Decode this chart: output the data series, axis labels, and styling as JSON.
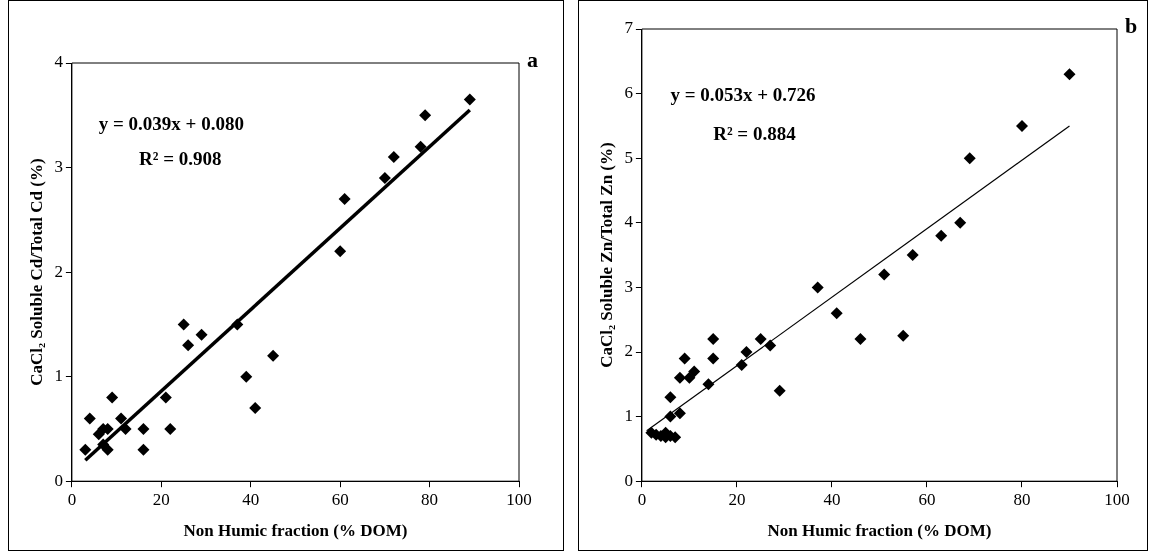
{
  "chart_data": [
    {
      "type": "scatter",
      "xlabel": "Non Humic fraction (% DOM)",
      "ylabel": "CaCl₂ Soluble Cd/Total Cd (%)",
      "xlim": [
        0,
        100
      ],
      "xticks": [
        0,
        20,
        40,
        60,
        80,
        100
      ],
      "ylim": [
        0,
        4
      ],
      "yticks": [
        0,
        1,
        2,
        3,
        4
      ],
      "grid": false,
      "legend": false,
      "marker": "diamond",
      "annotations": [
        "y = 0.039x + 0.080",
        "R² = 0.908",
        "a"
      ],
      "series": [
        {
          "color": "#000000",
          "x": [
            3,
            4,
            6,
            7,
            7,
            8,
            8,
            9,
            11,
            12,
            16,
            16,
            21,
            22,
            25,
            26,
            29,
            37,
            39,
            41,
            45,
            60,
            61,
            70,
            72,
            78,
            79,
            89
          ],
          "values": [
            0.3,
            0.6,
            0.45,
            0.35,
            0.5,
            0.3,
            0.5,
            0.8,
            0.6,
            0.5,
            0.5,
            0.3,
            0.8,
            0.5,
            1.5,
            1.3,
            1.4,
            1.5,
            1.0,
            0.7,
            1.2,
            2.2,
            2.7,
            2.9,
            3.1,
            3.2,
            3.5,
            3.65
          ]
        },
        {
          "type": "line",
          "color": "#000000",
          "marker": "none",
          "x": [
            3,
            89
          ],
          "values": [
            0.2,
            3.55
          ]
        }
      ]
    },
    {
      "type": "scatter",
      "xlabel": "Non Humic fraction (% DOM)",
      "ylabel": "CaCl₂ Soluble Zn/Total Zn (%)",
      "xlim": [
        0,
        100
      ],
      "xticks": [
        0,
        20,
        40,
        60,
        80,
        100
      ],
      "ylim": [
        0,
        7
      ],
      "yticks": [
        0,
        1,
        2,
        3,
        4,
        5,
        6,
        7
      ],
      "grid": false,
      "legend": false,
      "marker": "diamond",
      "annotations": [
        "y = 0.053x + 0.726",
        "R² = 0.884",
        "b"
      ],
      "series": [
        {
          "color": "#000000",
          "x": [
            2,
            3,
            4,
            5,
            5,
            6,
            6,
            6,
            7,
            8,
            8,
            9,
            10,
            11,
            14,
            15,
            15,
            21,
            22,
            25,
            27,
            29,
            37,
            41,
            46,
            51,
            55,
            57,
            63,
            67,
            69,
            80,
            90
          ],
          "values": [
            0.75,
            0.72,
            0.7,
            0.75,
            0.68,
            0.7,
            1.0,
            1.3,
            0.68,
            1.05,
            1.6,
            1.9,
            1.6,
            1.7,
            1.5,
            1.9,
            2.2,
            1.8,
            2.0,
            2.2,
            2.1,
            1.4,
            3.0,
            2.6,
            2.2,
            3.2,
            2.25,
            3.5,
            3.8,
            4.0,
            5.0,
            5.5,
            6.3
          ]
        },
        {
          "type": "line",
          "color": "#000000",
          "marker": "none",
          "x": [
            1,
            90
          ],
          "values": [
            0.78,
            5.5
          ]
        }
      ]
    }
  ]
}
